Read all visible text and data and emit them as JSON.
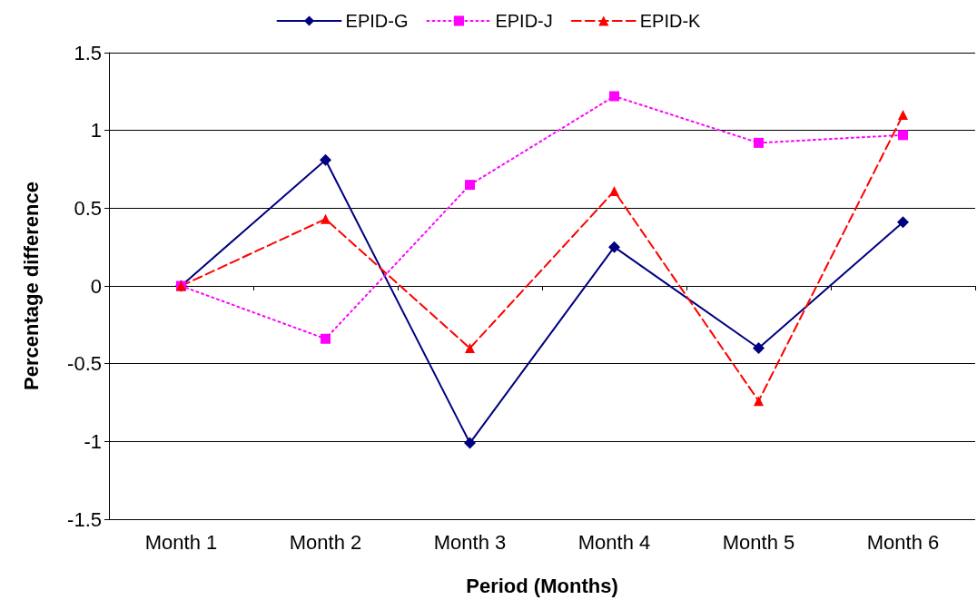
{
  "chart_data": {
    "type": "line",
    "xlabel": "Period (Months)",
    "ylabel": "Percentage difference",
    "categories": [
      "Month 1",
      "Month 2",
      "Month 3",
      "Month 4",
      "Month 5",
      "Month 6"
    ],
    "series": [
      {
        "name": "EPID-G",
        "color": "#000080",
        "marker": "diamond",
        "line_style": "solid",
        "values": [
          0,
          0.81,
          -1.01,
          0.25,
          -0.4,
          0.41
        ]
      },
      {
        "name": "EPID-J",
        "color": "#ff00ff",
        "marker": "square",
        "line_style": "dotted",
        "values": [
          0,
          -0.34,
          0.65,
          1.22,
          0.92,
          0.97
        ]
      },
      {
        "name": "EPID-K",
        "color": "#ff0000",
        "marker": "triangle",
        "line_style": "dashed",
        "values": [
          0,
          0.43,
          -0.4,
          0.61,
          -0.74,
          1.1
        ]
      }
    ],
    "ylim": [
      -1.5,
      1.5
    ],
    "yticks": [
      -1.5,
      -1,
      -0.5,
      0,
      0.5,
      1,
      1.5
    ],
    "grid": "y",
    "legend": "top"
  }
}
